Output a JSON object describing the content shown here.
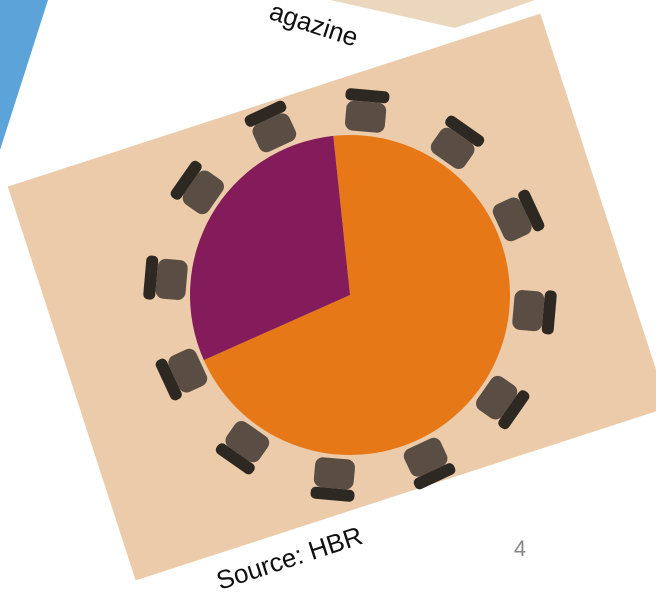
{
  "chart_data": {
    "type": "pie",
    "values": [
      70,
      30
    ],
    "colors": [
      "#e77817",
      "#841b5a"
    ]
  },
  "slide": {
    "header_fragment": "agazine",
    "source": "Source: HBR",
    "page_number": "4"
  }
}
